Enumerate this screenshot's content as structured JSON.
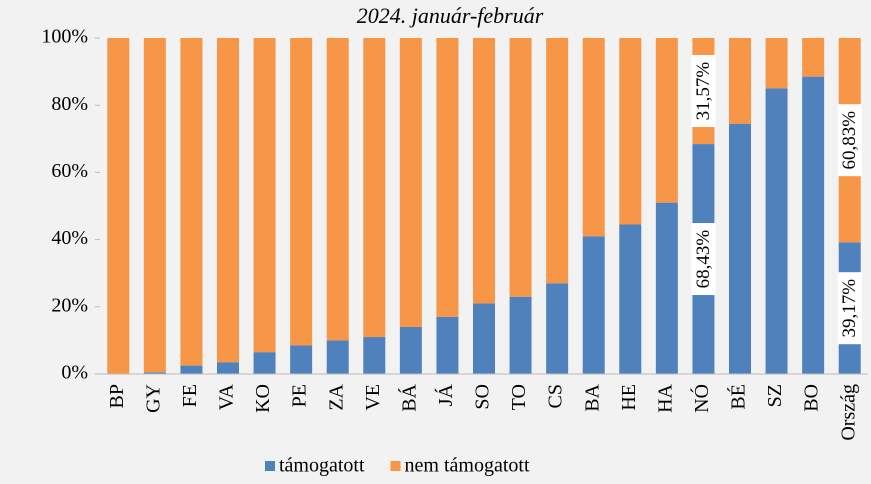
{
  "chart_data": {
    "type": "stacked_bar",
    "title": "2024. január-február",
    "categories": [
      "BP",
      "GY",
      "FE",
      "VA",
      "KO",
      "PE",
      "ZA",
      "VE",
      "BÁ",
      "JÁ",
      "SO",
      "TO",
      "CS",
      "BA",
      "HE",
      "HA",
      "NÓ",
      "BÉ",
      "SZ",
      "BO",
      "Ország"
    ],
    "series": [
      {
        "name": "támogatott",
        "color": "#4f81bd",
        "values": [
          0,
          0.5,
          2.5,
          3.5,
          6.5,
          8.5,
          10,
          11,
          14,
          17,
          21,
          23,
          27,
          41,
          44.5,
          51,
          68.43,
          74.5,
          85,
          88.5,
          39.17
        ],
        "value_labels": [
          null,
          null,
          null,
          null,
          null,
          null,
          null,
          null,
          null,
          null,
          null,
          null,
          null,
          null,
          null,
          null,
          "68,43%",
          null,
          null,
          null,
          "39,17%"
        ]
      },
      {
        "name": "nem támogatott",
        "color": "#f79646",
        "values": [
          100,
          99.5,
          97.5,
          96.5,
          93.5,
          91.5,
          90,
          89,
          86,
          83,
          79,
          77,
          73,
          59,
          55.5,
          49,
          31.57,
          25.5,
          15,
          11.5,
          60.83
        ],
        "value_labels": [
          null,
          null,
          null,
          null,
          null,
          null,
          null,
          null,
          null,
          null,
          null,
          null,
          null,
          null,
          null,
          null,
          "31,57%",
          null,
          null,
          null,
          "60,83%"
        ]
      }
    ],
    "ylim": [
      0,
      100
    ],
    "yticks": [
      {
        "value": 0,
        "label": "0%"
      },
      {
        "value": 20,
        "label": "20%"
      },
      {
        "value": 40,
        "label": "40%"
      },
      {
        "value": 60,
        "label": "60%"
      },
      {
        "value": 80,
        "label": "80%"
      },
      {
        "value": 100,
        "label": "100%"
      }
    ],
    "legend": "bottom"
  }
}
